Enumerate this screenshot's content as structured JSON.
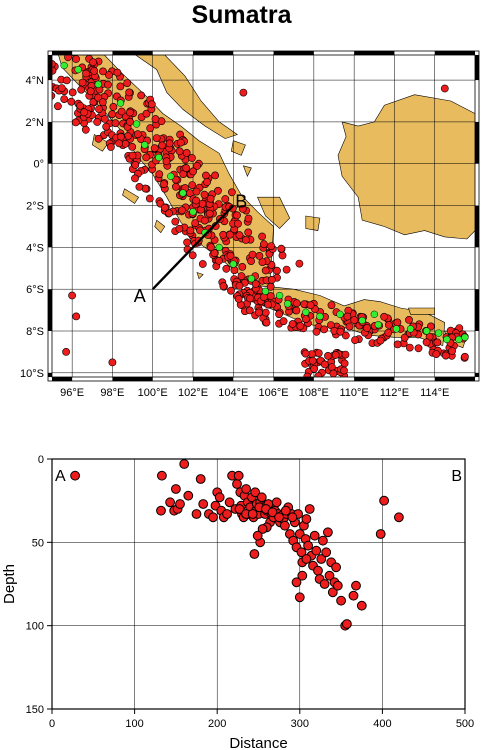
{
  "title": "Sumatra",
  "colors": {
    "land": "#e8bb5f",
    "sea": "#ffffff",
    "quake": "#ee1c1c",
    "volcano": "#33ee33",
    "grid": "#000000"
  },
  "map": {
    "lon_ticks": [
      "96°E",
      "98°E",
      "100°E",
      "102°E",
      "104°E",
      "106°E",
      "108°E",
      "110°E",
      "112°E",
      "114°E"
    ],
    "lat_ticks": [
      "4°N",
      "2°N",
      "0°",
      "2°S",
      "4°S",
      "6°S",
      "8°S",
      "10°S"
    ],
    "lon_range": [
      95,
      116
    ],
    "lat_range": [
      -10.2,
      5.2
    ],
    "profile_line": {
      "start_label": "A",
      "end_label": "B",
      "start": [
        100,
        -6
      ],
      "end": [
        104,
        -2
      ]
    }
  },
  "chart_data": {
    "type": "scatter",
    "title": "",
    "xlabel": "Distance",
    "ylabel": "Depth",
    "xlim": [
      0,
      500
    ],
    "ylim": [
      150,
      0
    ],
    "x_ticks": [
      "0",
      "100",
      "200",
      "300",
      "400",
      "500"
    ],
    "y_ticks": [
      "0",
      "50",
      "100",
      "150"
    ],
    "grid": true,
    "corner_labels": {
      "left": "A",
      "right": "B"
    },
    "points": [
      [
        28,
        10
      ],
      [
        160,
        3
      ],
      [
        133,
        10
      ],
      [
        132,
        31
      ],
      [
        143,
        26
      ],
      [
        148,
        31
      ],
      [
        150,
        18
      ],
      [
        152,
        30
      ],
      [
        155,
        27
      ],
      [
        165,
        22
      ],
      [
        175,
        33
      ],
      [
        180,
        12
      ],
      [
        183,
        27
      ],
      [
        190,
        33
      ],
      [
        195,
        35
      ],
      [
        198,
        28
      ],
      [
        200,
        20
      ],
      [
        203,
        23
      ],
      [
        205,
        31
      ],
      [
        208,
        35
      ],
      [
        212,
        33
      ],
      [
        215,
        26
      ],
      [
        218,
        10
      ],
      [
        222,
        30
      ],
      [
        224,
        15
      ],
      [
        226,
        10
      ],
      [
        228,
        20
      ],
      [
        229,
        28
      ],
      [
        230,
        33
      ],
      [
        232,
        35
      ],
      [
        233,
        22
      ],
      [
        235,
        18
      ],
      [
        237,
        26
      ],
      [
        238,
        33
      ],
      [
        240,
        29
      ],
      [
        242,
        23
      ],
      [
        244,
        35
      ],
      [
        246,
        20
      ],
      [
        247,
        31
      ],
      [
        248,
        27
      ],
      [
        250,
        33
      ],
      [
        252,
        26
      ],
      [
        254,
        23
      ],
      [
        256,
        29
      ],
      [
        258,
        33
      ],
      [
        260,
        31
      ],
      [
        262,
        27
      ],
      [
        264,
        38
      ],
      [
        266,
        33
      ],
      [
        268,
        35
      ],
      [
        270,
        31
      ],
      [
        272,
        26
      ],
      [
        274,
        33
      ],
      [
        276,
        38
      ],
      [
        278,
        34
      ],
      [
        280,
        36
      ],
      [
        282,
        40
      ],
      [
        284,
        33
      ],
      [
        286,
        29
      ],
      [
        288,
        45
      ],
      [
        290,
        33
      ],
      [
        292,
        49
      ],
      [
        294,
        38
      ],
      [
        296,
        53
      ],
      [
        298,
        33
      ],
      [
        300,
        45
      ],
      [
        302,
        56
      ],
      [
        303,
        62
      ],
      [
        305,
        40
      ],
      [
        307,
        48
      ],
      [
        308,
        36
      ],
      [
        310,
        52
      ],
      [
        312,
        30
      ],
      [
        314,
        58
      ],
      [
        316,
        64
      ],
      [
        318,
        46
      ],
      [
        320,
        55
      ],
      [
        322,
        67
      ],
      [
        324,
        72
      ],
      [
        326,
        60
      ],
      [
        328,
        49
      ],
      [
        330,
        75
      ],
      [
        332,
        56
      ],
      [
        334,
        44
      ],
      [
        336,
        70
      ],
      [
        338,
        62
      ],
      [
        340,
        80
      ],
      [
        342,
        74
      ],
      [
        344,
        65
      ],
      [
        346,
        76
      ],
      [
        350,
        85
      ],
      [
        355,
        100
      ],
      [
        357,
        99
      ],
      [
        365,
        82
      ],
      [
        368,
        76
      ],
      [
        375,
        88
      ],
      [
        398,
        45
      ],
      [
        402,
        25
      ],
      [
        420,
        35
      ],
      [
        300,
        83
      ],
      [
        296,
        74
      ],
      [
        303,
        70
      ],
      [
        308,
        60
      ],
      [
        245,
        57
      ],
      [
        252,
        50
      ],
      [
        260,
        41
      ],
      [
        255,
        42
      ],
      [
        249,
        46
      ],
      [
        227,
        30
      ],
      [
        235,
        33
      ],
      [
        243,
        33
      ],
      [
        251,
        29
      ],
      [
        259,
        30
      ],
      [
        267,
        32
      ],
      [
        275,
        35
      ],
      [
        283,
        31
      ],
      [
        291,
        35
      ]
    ]
  }
}
